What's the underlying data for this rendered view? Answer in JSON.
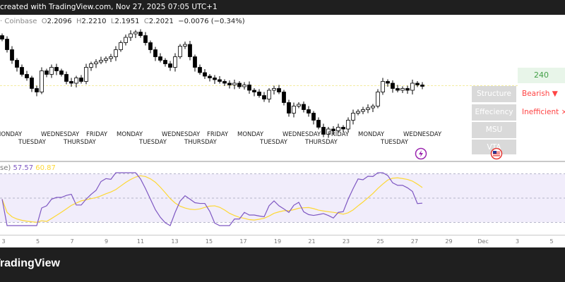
{
  "topbar": {
    "text": "created with TradingView.com, Nov 27, 2025 07:05 UTC+1"
  },
  "legend": {
    "exchange": "· Coinbase",
    "o_label": "O",
    "open": "2.2096",
    "h_label": "H",
    "high": "2.2210",
    "l_label": "L",
    "low": "2.1951",
    "c_label": "C",
    "close": "2.2021",
    "change": "−0.0076 (−0.34%)"
  },
  "rsi_legend": {
    "label": "se)",
    "rsi": "57.57",
    "ma": "60.87",
    "rsi_color": "#7e57c2",
    "ma_color": "#fdd835"
  },
  "day_labels": [
    "MONDAY",
    "TUESDAY",
    "WEDNESDAY",
    "THURSDAY",
    "FRIDAY"
  ],
  "panel": {
    "timeframe": "240",
    "buttons": [
      "Structure",
      "Effeciency",
      "MSU",
      "VTA"
    ],
    "structure_status": "Bearish ▼",
    "efficiency_status": "Inefficient ×"
  },
  "icons": [
    "lightning-icon",
    "us-flag-icon"
  ],
  "footer": {
    "brand": "TradingView"
  },
  "chart_data": {
    "type": "candlestick",
    "x_ticks": [
      "3",
      "5",
      "7",
      "9",
      "11",
      "13",
      "15",
      "17",
      "19",
      "21",
      "23",
      "25",
      "27",
      "29",
      "Dec",
      "3",
      "5"
    ],
    "closes": [
      2.47,
      2.41,
      2.35,
      2.31,
      2.27,
      2.25,
      2.19,
      2.17,
      2.29,
      2.27,
      2.31,
      2.29,
      2.27,
      2.23,
      2.22,
      2.25,
      2.23,
      2.31,
      2.33,
      2.34,
      2.35,
      2.36,
      2.37,
      2.41,
      2.45,
      2.48,
      2.5,
      2.51,
      2.49,
      2.45,
      2.41,
      2.37,
      2.35,
      2.33,
      2.31,
      2.37,
      2.43,
      2.44,
      2.37,
      2.31,
      2.28,
      2.26,
      2.25,
      2.24,
      2.23,
      2.22,
      2.21,
      2.22,
      2.2,
      2.21,
      2.18,
      2.17,
      2.15,
      2.13,
      2.18,
      2.19,
      2.17,
      2.11,
      2.05,
      2.09,
      2.1,
      2.07,
      2.05,
      2.01,
      1.97,
      1.93,
      1.96,
      1.95,
      1.97,
      1.96,
      2.01,
      2.05,
      2.06,
      2.07,
      2.08,
      2.09,
      2.17,
      2.23,
      2.22,
      2.19,
      2.18,
      2.19,
      2.18,
      2.22,
      2.21,
      2.2021
    ],
    "up_color": "#ffffff",
    "down_color": "#000000",
    "rsi_line_color": "#7e57c2",
    "rsi_ma_color": "#fdd835",
    "rsi_band": [
      30,
      70
    ]
  }
}
